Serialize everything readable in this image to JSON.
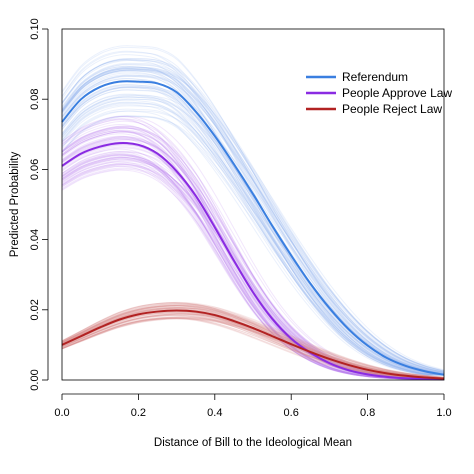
{
  "chart_data": {
    "type": "line",
    "title": "",
    "xlabel": "Distance of Bill to the Ideological Mean",
    "ylabel": "Predicted Probability",
    "xlim": [
      0,
      1
    ],
    "ylim": [
      0,
      0.1
    ],
    "x_ticks": [
      "0.0",
      "0.2",
      "0.4",
      "0.6",
      "0.8",
      "1.0"
    ],
    "y_ticks": [
      "0.00",
      "0.02",
      "0.04",
      "0.06",
      "0.08",
      "0.10"
    ],
    "grid": false,
    "legend_position": "top-right",
    "x": [
      0.0,
      0.05,
      0.1,
      0.15,
      0.2,
      0.25,
      0.3,
      0.35,
      0.4,
      0.45,
      0.5,
      0.55,
      0.6,
      0.65,
      0.7,
      0.75,
      0.8,
      0.85,
      0.9,
      0.95,
      1.0
    ],
    "series": [
      {
        "name": "Referendum",
        "color": "#3a7fe0",
        "band_color": "#8fb4ef",
        "values": [
          0.0735,
          0.08,
          0.0835,
          0.085,
          0.085,
          0.0845,
          0.082,
          0.0765,
          0.0695,
          0.0615,
          0.053,
          0.044,
          0.0355,
          0.0275,
          0.0205,
          0.0145,
          0.0098,
          0.0063,
          0.004,
          0.0025,
          0.0015
        ]
      },
      {
        "name": "People Approve Law",
        "color": "#8a2be2",
        "band_color": "#b77af0",
        "values": [
          0.061,
          0.0645,
          0.0665,
          0.0675,
          0.067,
          0.0645,
          0.0595,
          0.0525,
          0.0435,
          0.034,
          0.025,
          0.0175,
          0.0118,
          0.0078,
          0.0048,
          0.0028,
          0.0016,
          0.0009,
          0.0005,
          0.0003,
          0.0002
        ]
      },
      {
        "name": "People Reject Law",
        "color": "#b22222",
        "band_color": "#d98a8a",
        "values": [
          0.01,
          0.0125,
          0.015,
          0.0172,
          0.0187,
          0.0195,
          0.0198,
          0.0195,
          0.0185,
          0.0168,
          0.0148,
          0.0125,
          0.0102,
          0.008,
          0.006,
          0.0043,
          0.0029,
          0.0019,
          0.0012,
          0.0007,
          0.0004
        ]
      }
    ]
  }
}
